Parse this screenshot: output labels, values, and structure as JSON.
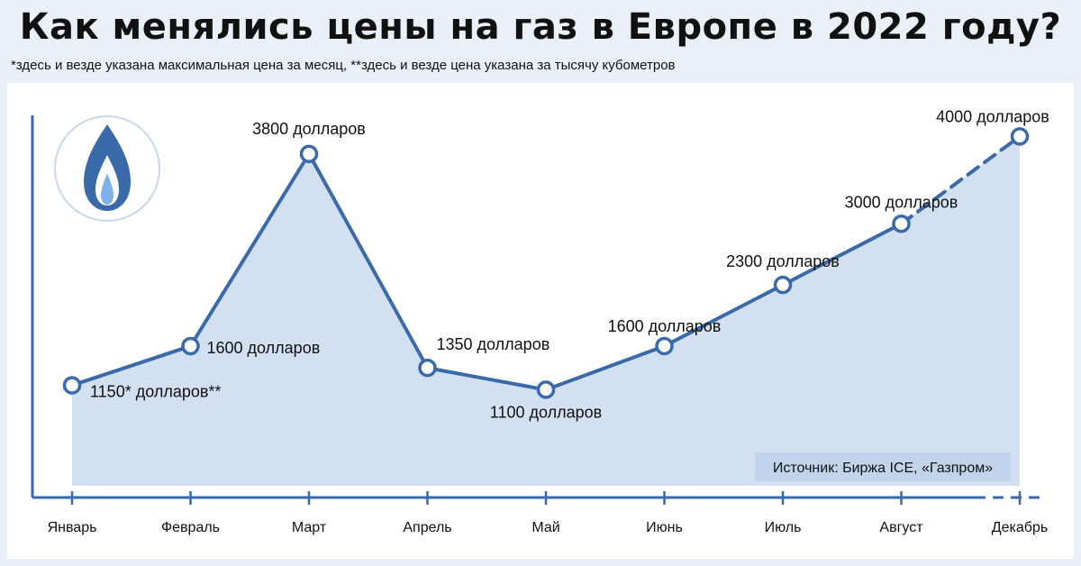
{
  "header": {
    "title": "Как менялись цены на газ в Европе в 2022 году?",
    "subtitle": "*здесь и везде указана максимальная цена за месяц, **здесь и везде цена указана за тысячу кубометров"
  },
  "source_text": "Источник: Биржа ICE, «Газпром»",
  "logo_icon": "gas-flame-icon",
  "colors": {
    "line": "#3a6aaa",
    "area": "#d3e0f1",
    "panel": "#ffffff",
    "background": "#eaf0f7",
    "source_box": "#c2d4ec"
  },
  "chart_data": {
    "type": "line",
    "title": "Как менялись цены на газ в Европе в 2022 году?",
    "categories": [
      "Январь",
      "Февраль",
      "Март",
      "Апрель",
      "Май",
      "Июнь",
      "Июль",
      "Август",
      "Декабрь"
    ],
    "series": [
      {
        "values": [
          1150,
          1600,
          3800,
          1350,
          1100,
          1600,
          2300,
          3000,
          4000
        ]
      }
    ],
    "data_labels": [
      "1150* долларов**",
      "1600 долларов",
      "3800 долларов",
      "1350 долларов",
      "1100 долларов",
      "1600 долларов",
      "2300 долларов",
      "3000 долларов",
      "4000 долларов"
    ],
    "dashed_last_segment": true,
    "ylim": [
      0,
      4200
    ],
    "grid": false,
    "xlabel": "",
    "ylabel": ""
  }
}
